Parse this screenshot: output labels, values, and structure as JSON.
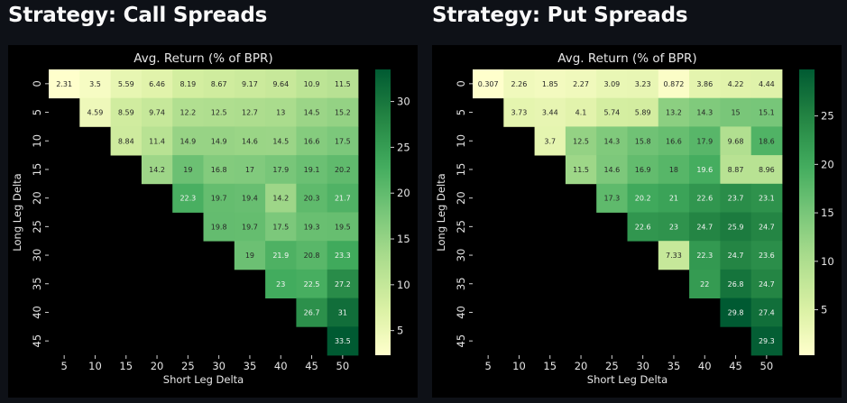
{
  "panels": [
    {
      "title": "Strategy: Call Spreads"
    },
    {
      "title": "Strategy: Put Spreads"
    }
  ],
  "chart_data": [
    {
      "type": "heatmap",
      "title": "Avg. Return (% of BPR)",
      "xlabel": "Short Leg Delta",
      "ylabel": "Long Leg Delta",
      "x": [
        "5",
        "10",
        "15",
        "20",
        "25",
        "30",
        "35",
        "40",
        "45",
        "50"
      ],
      "y": [
        "0",
        "5",
        "10",
        "15",
        "20",
        "25",
        "30",
        "35",
        "40",
        "45"
      ],
      "colorbar": {
        "min": 2.31,
        "max": 33.5,
        "ticks": [
          5,
          10,
          15,
          20,
          25,
          30
        ]
      },
      "grid": false,
      "values": [
        [
          2.31,
          3.5,
          5.59,
          6.46,
          8.19,
          8.67,
          9.17,
          9.64,
          10.9,
          11.5
        ],
        [
          null,
          4.59,
          8.59,
          9.74,
          12.2,
          12.5,
          12.7,
          13,
          14.5,
          15.2
        ],
        [
          null,
          null,
          8.84,
          11.4,
          14.9,
          14.9,
          14.6,
          14.5,
          16.6,
          17.5
        ],
        [
          null,
          null,
          null,
          14.2,
          19,
          16.8,
          17,
          17.9,
          19.1,
          20.2
        ],
        [
          null,
          null,
          null,
          null,
          22.3,
          19.7,
          19.4,
          14.2,
          20.3,
          21.7
        ],
        [
          null,
          null,
          null,
          null,
          null,
          19.8,
          19.7,
          17.5,
          19.3,
          19.5
        ],
        [
          null,
          null,
          null,
          null,
          null,
          null,
          19,
          21.9,
          20.8,
          23.3
        ],
        [
          null,
          null,
          null,
          null,
          null,
          null,
          null,
          23,
          22.5,
          27.2
        ],
        [
          null,
          null,
          null,
          null,
          null,
          null,
          null,
          null,
          26.7,
          31
        ],
        [
          null,
          null,
          null,
          null,
          null,
          null,
          null,
          null,
          null,
          33.5
        ]
      ],
      "labels": [
        [
          "2.31",
          "3.5",
          "5.59",
          "6.46",
          "8.19",
          "8.67",
          "9.17",
          "9.64",
          "10.9",
          "11.5"
        ],
        [
          "",
          "4.59",
          "8.59",
          "9.74",
          "12.2",
          "12.5",
          "12.7",
          "13",
          "14.5",
          "15.2"
        ],
        [
          "",
          "",
          "8.84",
          "11.4",
          "14.9",
          "14.9",
          "14.6",
          "14.5",
          "16.6",
          "17.5"
        ],
        [
          "",
          "",
          "",
          "14.2",
          "19",
          "16.8",
          "17",
          "17.9",
          "19.1",
          "20.2"
        ],
        [
          "",
          "",
          "",
          "",
          "22.3",
          "19.7",
          "19.4",
          "14.2",
          "20.3",
          "21.7"
        ],
        [
          "",
          "",
          "",
          "",
          "",
          "19.8",
          "19.7",
          "17.5",
          "19.3",
          "19.5"
        ],
        [
          "",
          "",
          "",
          "",
          "",
          "",
          "19",
          "21.9",
          "20.8",
          "23.3"
        ],
        [
          "",
          "",
          "",
          "",
          "",
          "",
          "",
          "23",
          "22.5",
          "27.2"
        ],
        [
          "",
          "",
          "",
          "",
          "",
          "",
          "",
          "",
          "26.7",
          "31"
        ],
        [
          "",
          "",
          "",
          "",
          "",
          "",
          "",
          "",
          "",
          "33.5"
        ]
      ]
    },
    {
      "type": "heatmap",
      "title": "Avg. Return (% of BPR)",
      "xlabel": "Short Leg Delta",
      "ylabel": "Long Leg Delta",
      "x": [
        "5",
        "10",
        "15",
        "20",
        "25",
        "30",
        "35",
        "40",
        "45",
        "50"
      ],
      "y": [
        "0",
        "5",
        "10",
        "15",
        "20",
        "25",
        "30",
        "35",
        "40",
        "45"
      ],
      "colorbar": {
        "min": 0.307,
        "max": 29.8,
        "ticks": [
          5,
          10,
          15,
          20,
          25
        ]
      },
      "grid": false,
      "values": [
        [
          0.307,
          2.26,
          1.85,
          2.27,
          3.09,
          3.23,
          0.872,
          3.86,
          4.22,
          4.44
        ],
        [
          null,
          3.73,
          3.44,
          4.1,
          5.74,
          5.89,
          13.2,
          14.3,
          15,
          15.1
        ],
        [
          null,
          null,
          3.7,
          12.5,
          14.3,
          15.8,
          16.6,
          17.9,
          9.68,
          18.6
        ],
        [
          null,
          null,
          null,
          11.5,
          14.6,
          16.9,
          18,
          19.6,
          8.87,
          8.96
        ],
        [
          null,
          null,
          null,
          null,
          17.3,
          20.2,
          21,
          22.6,
          23.7,
          23.1
        ],
        [
          null,
          null,
          null,
          null,
          null,
          22.6,
          23,
          24.7,
          25.9,
          24.7
        ],
        [
          null,
          null,
          null,
          null,
          null,
          null,
          7.33,
          22.3,
          24.7,
          23.6
        ],
        [
          null,
          null,
          null,
          null,
          null,
          null,
          null,
          22,
          26.8,
          24.7
        ],
        [
          null,
          null,
          null,
          null,
          null,
          null,
          null,
          null,
          29.8,
          27.4
        ],
        [
          null,
          null,
          null,
          null,
          null,
          null,
          null,
          null,
          null,
          29.3
        ]
      ],
      "labels": [
        [
          "0.307",
          "2.26",
          "1.85",
          "2.27",
          "3.09",
          "3.23",
          "0.872",
          "3.86",
          "4.22",
          "4.44"
        ],
        [
          "",
          "3.73",
          "3.44",
          "4.1",
          "5.74",
          "5.89",
          "13.2",
          "14.3",
          "15",
          "15.1"
        ],
        [
          "",
          "",
          "3.7",
          "12.5",
          "14.3",
          "15.8",
          "16.6",
          "17.9",
          "9.68",
          "18.6"
        ],
        [
          "",
          "",
          "",
          "11.5",
          "14.6",
          "16.9",
          "18",
          "19.6",
          "8.87",
          "8.96"
        ],
        [
          "",
          "",
          "",
          "",
          "17.3",
          "20.2",
          "21",
          "22.6",
          "23.7",
          "23.1"
        ],
        [
          "",
          "",
          "",
          "",
          "",
          "22.6",
          "23",
          "24.7",
          "25.9",
          "24.7"
        ],
        [
          "",
          "",
          "",
          "",
          "",
          "",
          "7.33",
          "22.3",
          "24.7",
          "23.6"
        ],
        [
          "",
          "",
          "",
          "",
          "",
          "",
          "",
          "22",
          "26.8",
          "24.7"
        ],
        [
          "",
          "",
          "",
          "",
          "",
          "",
          "",
          "",
          "29.8",
          "27.4"
        ],
        [
          "",
          "",
          "",
          "",
          "",
          "",
          "",
          "",
          "",
          "29.3"
        ]
      ]
    }
  ]
}
